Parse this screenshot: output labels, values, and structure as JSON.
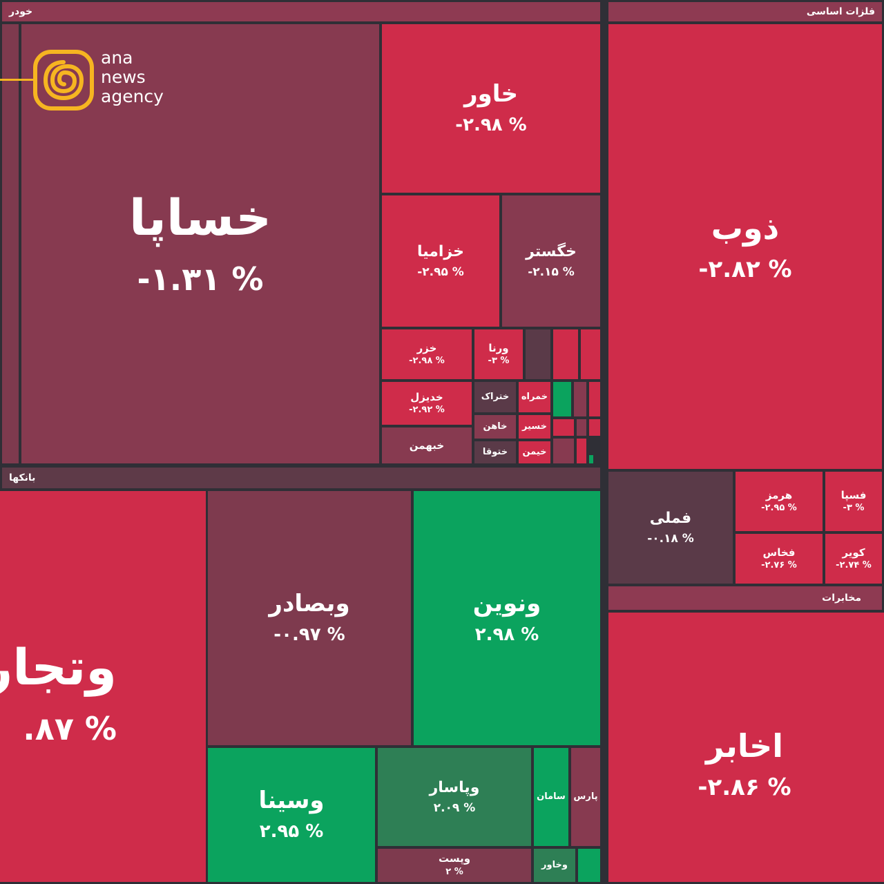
{
  "sectors": {
    "auto": "خودر",
    "metals": "فلزات اساسی",
    "banks": "بانکها",
    "telecom": "مخابرات"
  },
  "tiles": {
    "khasapa": {
      "name": "خساپا",
      "pct": "-۱.۳۱ %"
    },
    "khavar": {
      "name": "خاور",
      "pct": "-۲.۹۸ %"
    },
    "khazamia": {
      "name": "خزامیا",
      "pct": "-۲.۹۵ %"
    },
    "khgostar": {
      "name": "خگستر",
      "pct": "-۲.۱۵ %"
    },
    "khazar": {
      "name": "خزر",
      "pct": "-۲.۹۸ %"
    },
    "vernaa": {
      "name": "ورنا",
      "pct": "-۳ %"
    },
    "khodizel": {
      "name": "خدیزل",
      "pct": "-۲.۹۲ %"
    },
    "khtrak": {
      "name": "ختراک"
    },
    "khmehrak": {
      "name": "خمراه"
    },
    "khahn": {
      "name": "خاهن"
    },
    "khseir": {
      "name": "خسیر"
    },
    "khbahman": {
      "name": "خبهمن"
    },
    "khtoofa": {
      "name": "ختوقا"
    },
    "khimen": {
      "name": "خیمن"
    },
    "zob": {
      "name": "ذوب",
      "pct": "-۲.۸۲ %"
    },
    "fameli": {
      "name": "فملی",
      "pct": "-۰.۱۸ %"
    },
    "hormoz": {
      "name": "هرمز",
      "pct": "-۲.۹۵ %"
    },
    "fasepa": {
      "name": "فسپا",
      "pct": "-۳ %"
    },
    "fkhas": {
      "name": "فخاس",
      "pct": "-۲.۷۶ %"
    },
    "kavir": {
      "name": "کویر",
      "pct": "-۲.۷۴ %"
    },
    "akhaber": {
      "name": "اخابر",
      "pct": "-۲.۸۶ %"
    },
    "vtejarat": {
      "name": "وتجار",
      "pct": ".۸۷ %"
    },
    "vbsader": {
      "name": "وبصادر",
      "pct": "-۰.۹۷ %"
    },
    "vnovin": {
      "name": "ونوین",
      "pct": "۲.۹۸ %"
    },
    "vsina": {
      "name": "وسینا",
      "pct": "۲.۹۵ %"
    },
    "vpasar": {
      "name": "وپاسار",
      "pct": "۲.۰۹ %"
    },
    "saman": {
      "name": "سامان"
    },
    "pars": {
      "name": "پارس"
    },
    "vpost": {
      "name": "وپست",
      "pct": "۲ %"
    },
    "vkhavar": {
      "name": "وخاور"
    }
  },
  "logo": {
    "line1": "ana",
    "line2": "news",
    "line3": "agency"
  },
  "colors": {
    "red": "#cf2c4a",
    "maroon": "#873a50",
    "green": "#0ba35e",
    "logo": "#f6b521"
  }
}
